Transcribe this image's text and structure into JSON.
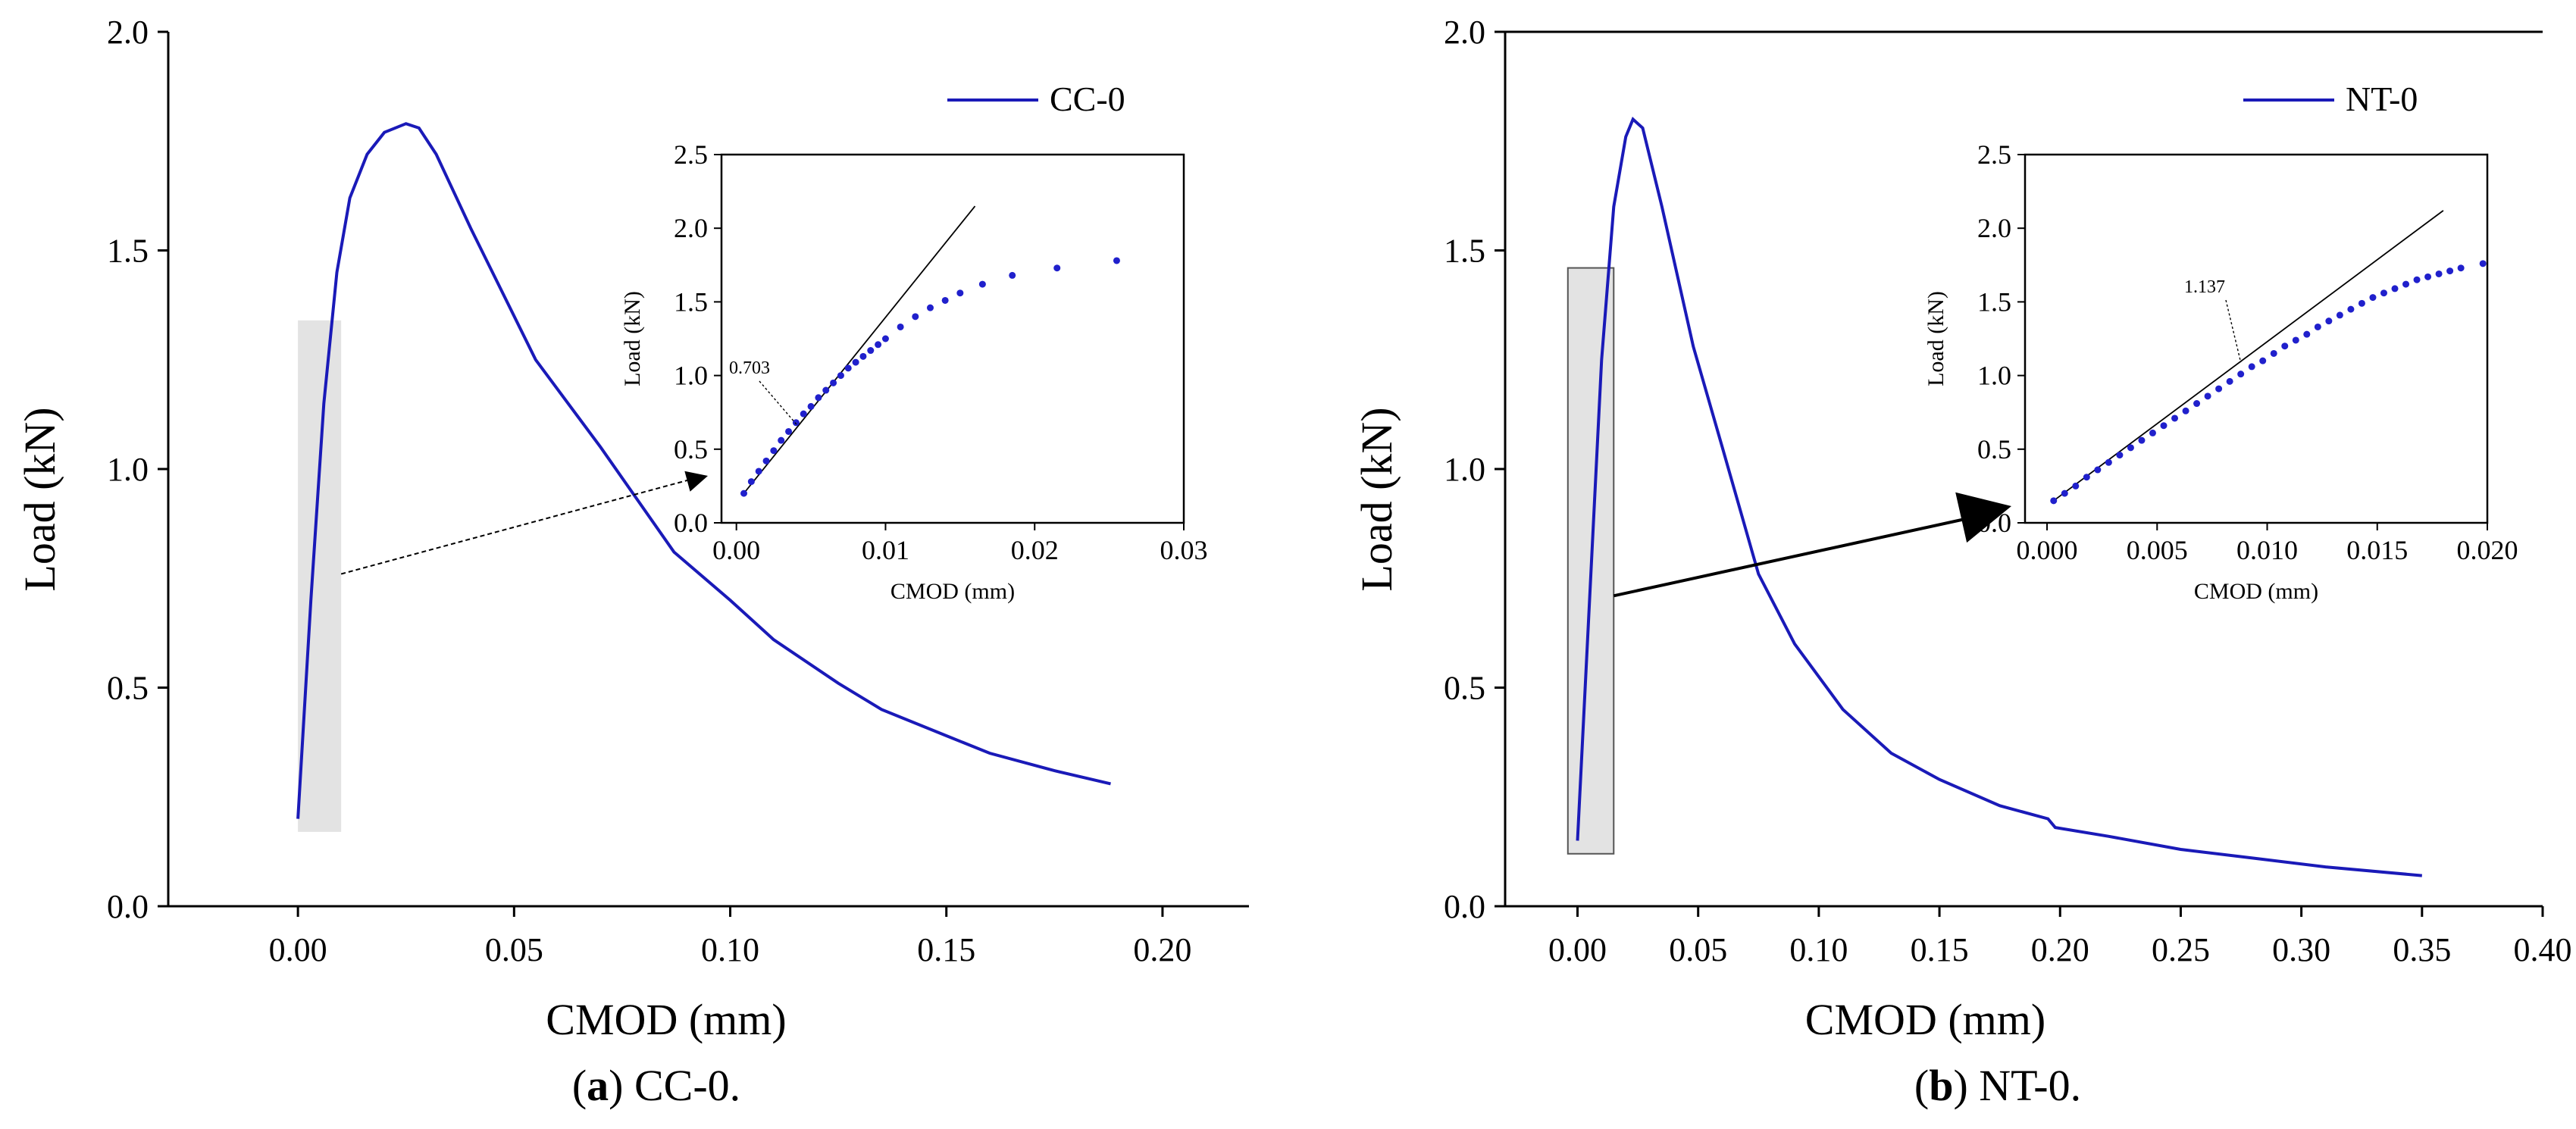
{
  "chart_data": [
    {
      "type": "line",
      "panel": "a",
      "caption_letter": "a",
      "caption_text": ") CC-0.",
      "caption_open": "(",
      "xlabel": "CMOD (mm)",
      "ylabel": "Load (kN)",
      "xlim": [
        -0.03,
        0.22
      ],
      "ylim": [
        0.0,
        2.0
      ],
      "xticks": [
        "0.00",
        "0.05",
        "0.10",
        "0.15",
        "0.20"
      ],
      "yticks": [
        "0.0",
        "0.5",
        "1.0",
        "1.5",
        "2.0"
      ],
      "legend": "CC-0",
      "color": "#1a1ab8",
      "series": [
        {
          "name": "CC-0",
          "x": [
            0.0,
            0.003,
            0.006,
            0.009,
            0.012,
            0.016,
            0.02,
            0.025,
            0.028,
            0.032,
            0.04,
            0.055,
            0.07,
            0.087,
            0.1,
            0.11,
            0.125,
            0.135,
            0.15,
            0.16,
            0.175,
            0.188
          ],
          "y": [
            0.2,
            0.7,
            1.15,
            1.45,
            1.62,
            1.72,
            1.77,
            1.79,
            1.78,
            1.72,
            1.55,
            1.25,
            1.05,
            0.81,
            0.7,
            0.61,
            0.51,
            0.45,
            0.39,
            0.35,
            0.31,
            0.28
          ]
        }
      ],
      "highlight_x": [
        0.0,
        0.01
      ],
      "highlight_y": [
        0.17,
        1.34
      ],
      "arrow_from": [
        0.01,
        0.76
      ],
      "inset": {
        "xlabel": "CMOD (mm)",
        "ylabel": "Load (kN)",
        "xlim": [
          -0.001,
          0.03
        ],
        "ylim": [
          0.0,
          2.5
        ],
        "xticks": [
          "0.00",
          "0.01",
          "0.02",
          "0.03"
        ],
        "yticks": [
          "0.0",
          "0.5",
          "1.0",
          "1.5",
          "2.0",
          "2.5"
        ],
        "annotation": "0.703",
        "points_x": [
          0.0005,
          0.001,
          0.0015,
          0.002,
          0.0025,
          0.003,
          0.0035,
          0.004,
          0.0045,
          0.005,
          0.0055,
          0.006,
          0.0065,
          0.007,
          0.0075,
          0.008,
          0.0085,
          0.009,
          0.0095,
          0.01,
          0.011,
          0.012,
          0.013,
          0.014,
          0.015,
          0.0165,
          0.0185,
          0.0215,
          0.0255
        ],
        "points_y": [
          0.2,
          0.28,
          0.35,
          0.42,
          0.49,
          0.56,
          0.62,
          0.68,
          0.74,
          0.79,
          0.85,
          0.9,
          0.95,
          1.0,
          1.05,
          1.09,
          1.13,
          1.17,
          1.21,
          1.25,
          1.33,
          1.4,
          1.46,
          1.51,
          1.56,
          1.62,
          1.68,
          1.73,
          1.78
        ],
        "tangent_x": [
          0.0005,
          0.016
        ],
        "tangent_y": [
          0.2,
          2.15
        ]
      }
    },
    {
      "type": "line",
      "panel": "b",
      "caption_letter": "b",
      "caption_text": ") NT-0.",
      "caption_open": "(",
      "xlabel": "CMOD (mm)",
      "ylabel": "Load (kN)",
      "xlim": [
        -0.03,
        0.4
      ],
      "ylim": [
        0.0,
        2.0
      ],
      "xticks": [
        "0.00",
        "0.05",
        "0.10",
        "0.15",
        "0.20",
        "0.25",
        "0.30",
        "0.35",
        "0.40"
      ],
      "yticks": [
        "0.0",
        "0.5",
        "1.0",
        "1.5",
        "2.0"
      ],
      "legend": "NT-0",
      "color": "#1a1ab8",
      "series": [
        {
          "name": "NT-0",
          "x": [
            0.0,
            0.005,
            0.01,
            0.015,
            0.02,
            0.023,
            0.027,
            0.035,
            0.048,
            0.06,
            0.075,
            0.09,
            0.11,
            0.13,
            0.15,
            0.175,
            0.195,
            0.198,
            0.22,
            0.25,
            0.28,
            0.31,
            0.35
          ],
          "y": [
            0.15,
            0.7,
            1.25,
            1.6,
            1.76,
            1.8,
            1.78,
            1.6,
            1.28,
            1.05,
            0.76,
            0.6,
            0.45,
            0.35,
            0.29,
            0.23,
            0.2,
            0.18,
            0.16,
            0.13,
            0.11,
            0.09,
            0.07
          ]
        }
      ],
      "highlight_x": [
        -0.004,
        0.015
      ],
      "highlight_y": [
        0.12,
        1.46
      ],
      "arrow_from": [
        0.015,
        0.71
      ],
      "inset": {
        "xlabel": "CMOD (mm)",
        "ylabel": "Load (kN)",
        "xlim": [
          -0.001,
          0.02
        ],
        "ylim": [
          0.0,
          2.5
        ],
        "xticks": [
          "0.000",
          "0.005",
          "0.010",
          "0.015",
          "0.020"
        ],
        "yticks": [
          "0.0",
          "0.5",
          "1.0",
          "1.5",
          "2.0",
          "2.5"
        ],
        "annotation": "1.137",
        "points_x": [
          0.0003,
          0.0008,
          0.0013,
          0.0018,
          0.0023,
          0.0028,
          0.0033,
          0.0038,
          0.0043,
          0.0048,
          0.0053,
          0.0058,
          0.0063,
          0.0068,
          0.0073,
          0.0078,
          0.0083,
          0.0088,
          0.0093,
          0.0098,
          0.0103,
          0.0108,
          0.0113,
          0.0118,
          0.0123,
          0.0128,
          0.0133,
          0.0138,
          0.0143,
          0.0148,
          0.0153,
          0.0158,
          0.0163,
          0.0168,
          0.0173,
          0.0178,
          0.0183,
          0.0188,
          0.0198
        ],
        "points_y": [
          0.15,
          0.2,
          0.25,
          0.31,
          0.36,
          0.41,
          0.46,
          0.51,
          0.56,
          0.61,
          0.66,
          0.71,
          0.76,
          0.81,
          0.86,
          0.91,
          0.96,
          1.01,
          1.06,
          1.1,
          1.15,
          1.2,
          1.24,
          1.28,
          1.33,
          1.37,
          1.41,
          1.45,
          1.49,
          1.53,
          1.56,
          1.59,
          1.62,
          1.65,
          1.67,
          1.69,
          1.71,
          1.73,
          1.76
        ],
        "tangent_x": [
          0.0003,
          0.018
        ],
        "tangent_y": [
          0.15,
          2.12
        ]
      }
    }
  ]
}
